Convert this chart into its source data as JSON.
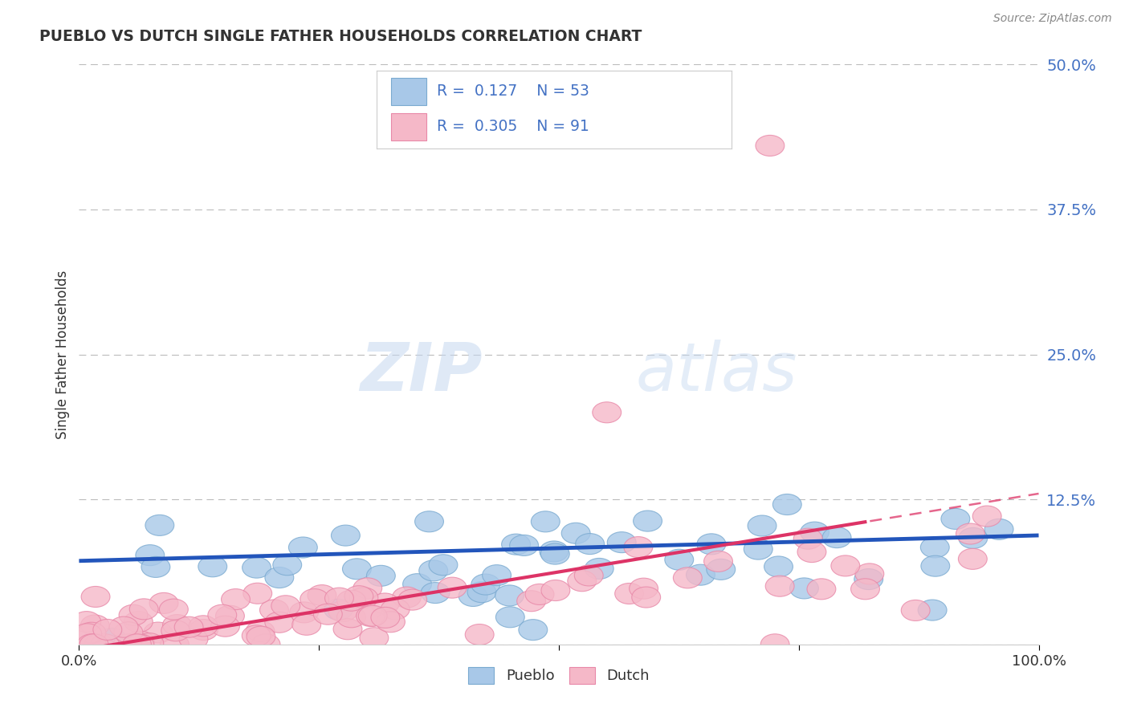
{
  "title": "PUEBLO VS DUTCH SINGLE FATHER HOUSEHOLDS CORRELATION CHART",
  "source": "Source: ZipAtlas.com",
  "ylabel": "Single Father Households",
  "xlim": [
    0,
    1
  ],
  "ylim": [
    0,
    0.5
  ],
  "yticks": [
    0,
    0.125,
    0.25,
    0.375,
    0.5
  ],
  "pueblo_color": "#a8c8e8",
  "pueblo_edge_color": "#7aaad0",
  "dutch_color": "#f5b8c8",
  "dutch_edge_color": "#e888a8",
  "pueblo_line_color": "#2255bb",
  "dutch_line_color": "#dd3366",
  "legend_r_pueblo": "0.127",
  "legend_n_pueblo": "53",
  "legend_r_dutch": "0.305",
  "legend_n_dutch": "91",
  "watermark_zip": "ZIP",
  "watermark_atlas": "atlas",
  "background_color": "#ffffff",
  "grid_color": "#bbbbbb",
  "tick_color": "#4472c4",
  "title_color": "#333333",
  "source_color": "#888888"
}
